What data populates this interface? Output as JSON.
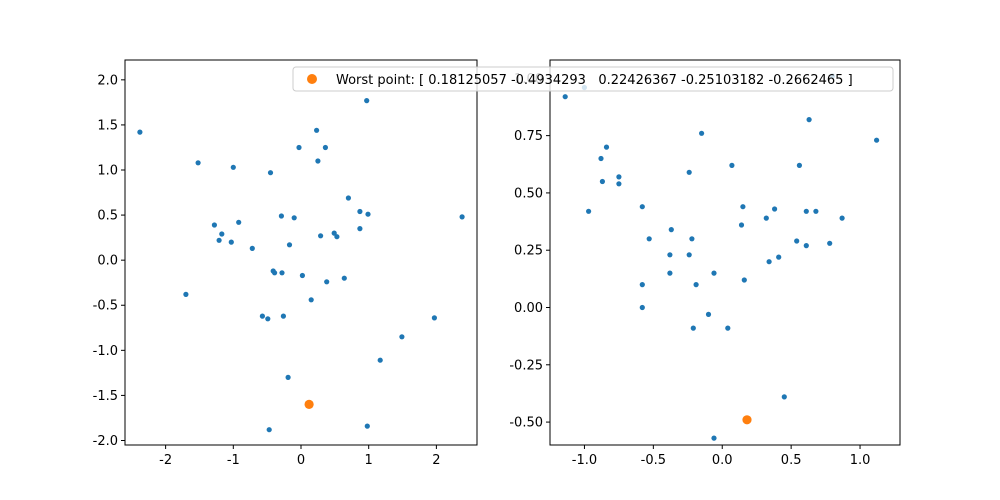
{
  "figure": {
    "background": "#ffffff",
    "legend": {
      "label": "Worst point: [ 0.18125057 -0.4934293   0.22426367 -0.25103182 -0.2662465 ]",
      "placement": "top-right of left panel, overlapping both panels"
    }
  },
  "colors": {
    "points": "#1f77b4",
    "worst": "#ff7f0e",
    "axes": "#000000",
    "legend_border": "#cccccc"
  },
  "chart_data": [
    {
      "type": "scatter",
      "xlim": [
        -2.6,
        2.6
      ],
      "ylim": [
        -2.05,
        2.22
      ],
      "xticks": [
        "-2",
        "-1",
        "0",
        "1",
        "2"
      ],
      "xtick_values": [
        -2,
        -1,
        0,
        1,
        2
      ],
      "yticks": [
        "-2.0",
        "-1.5",
        "-1.0",
        "-0.5",
        "0.0",
        "0.5",
        "1.0",
        "1.5",
        "2.0"
      ],
      "ytick_values": [
        -2.0,
        -1.5,
        -1.0,
        -0.5,
        0.0,
        0.5,
        1.0,
        1.5,
        2.0
      ],
      "grid": false,
      "points": [
        [
          -2.38,
          1.42
        ],
        [
          -1.52,
          1.08
        ],
        [
          -1.7,
          -0.38
        ],
        [
          -1.28,
          0.39
        ],
        [
          -1.21,
          0.22
        ],
        [
          -1.17,
          0.29
        ],
        [
          -1.03,
          0.2
        ],
        [
          -1.0,
          1.03
        ],
        [
          -0.92,
          0.42
        ],
        [
          -0.72,
          0.13
        ],
        [
          -0.57,
          -0.62
        ],
        [
          -0.49,
          -0.65
        ],
        [
          -0.45,
          0.97
        ],
        [
          -0.41,
          -0.12
        ],
        [
          -0.39,
          -0.14
        ],
        [
          -0.29,
          0.49
        ],
        [
          -0.28,
          -0.14
        ],
        [
          -0.26,
          -0.62
        ],
        [
          -0.19,
          -1.3
        ],
        [
          -0.17,
          0.17
        ],
        [
          -0.1,
          0.47
        ],
        [
          -0.03,
          1.25
        ],
        [
          0.02,
          -0.17
        ],
        [
          0.15,
          -0.44
        ],
        [
          0.23,
          1.44
        ],
        [
          0.25,
          1.1
        ],
        [
          0.29,
          0.27
        ],
        [
          0.36,
          1.25
        ],
        [
          0.38,
          -0.24
        ],
        [
          0.49,
          0.3
        ],
        [
          0.53,
          0.26
        ],
        [
          0.64,
          -0.2
        ],
        [
          0.7,
          0.69
        ],
        [
          0.87,
          0.54
        ],
        [
          0.87,
          0.35
        ],
        [
          0.97,
          1.77
        ],
        [
          0.99,
          0.51
        ],
        [
          1.17,
          -1.11
        ],
        [
          1.49,
          -0.85
        ],
        [
          1.97,
          -0.64
        ],
        [
          2.38,
          0.48
        ],
        [
          -0.47,
          -1.88
        ],
        [
          0.98,
          -1.84
        ]
      ],
      "worst_point": [
        0.12,
        -1.6
      ]
    },
    {
      "type": "scatter",
      "xlim": [
        -1.25,
        1.29
      ],
      "ylim": [
        -0.6,
        1.08
      ],
      "xticks": [
        "-1.0",
        "-0.5",
        "0.0",
        "0.5",
        "1.0"
      ],
      "xtick_values": [
        -1.0,
        -0.5,
        0.0,
        0.5,
        1.0
      ],
      "yticks": [
        "-0.50",
        "-0.25",
        "0.00",
        "0.25",
        "0.50",
        "0.75",
        "1.00"
      ],
      "ytick_values": [
        -0.5,
        -0.25,
        0.0,
        0.25,
        0.5,
        0.75,
        1.0
      ],
      "grid": false,
      "points": [
        [
          -1.14,
          0.92
        ],
        [
          -1.0,
          0.96
        ],
        [
          -0.97,
          0.42
        ],
        [
          -0.88,
          0.65
        ],
        [
          -0.87,
          0.55
        ],
        [
          -0.84,
          0.7
        ],
        [
          -0.75,
          0.57
        ],
        [
          -0.75,
          0.54
        ],
        [
          -0.58,
          0.44
        ],
        [
          -0.58,
          0.1
        ],
        [
          -0.58,
          0.0
        ],
        [
          -0.53,
          0.3
        ],
        [
          -0.38,
          0.23
        ],
        [
          -0.37,
          0.34
        ],
        [
          -0.38,
          0.15
        ],
        [
          -0.24,
          0.59
        ],
        [
          -0.24,
          0.23
        ],
        [
          -0.22,
          0.3
        ],
        [
          -0.21,
          -0.09
        ],
        [
          -0.19,
          0.1
        ],
        [
          -0.15,
          0.76
        ],
        [
          -0.1,
          -0.03
        ],
        [
          -0.06,
          0.15
        ],
        [
          -0.06,
          -0.57
        ],
        [
          0.04,
          -0.09
        ],
        [
          0.07,
          0.62
        ],
        [
          0.14,
          0.36
        ],
        [
          0.15,
          0.44
        ],
        [
          0.16,
          0.12
        ],
        [
          0.32,
          0.39
        ],
        [
          0.34,
          0.2
        ],
        [
          0.38,
          0.43
        ],
        [
          0.41,
          0.22
        ],
        [
          0.45,
          -0.39
        ],
        [
          0.54,
          0.29
        ],
        [
          0.56,
          0.62
        ],
        [
          0.61,
          0.27
        ],
        [
          0.61,
          0.42
        ],
        [
          0.63,
          0.82
        ],
        [
          0.68,
          0.42
        ],
        [
          0.78,
          0.28
        ],
        [
          0.8,
          1.01
        ],
        [
          0.87,
          0.39
        ],
        [
          1.12,
          0.73
        ]
      ],
      "worst_point": [
        0.18,
        -0.49
      ]
    }
  ]
}
